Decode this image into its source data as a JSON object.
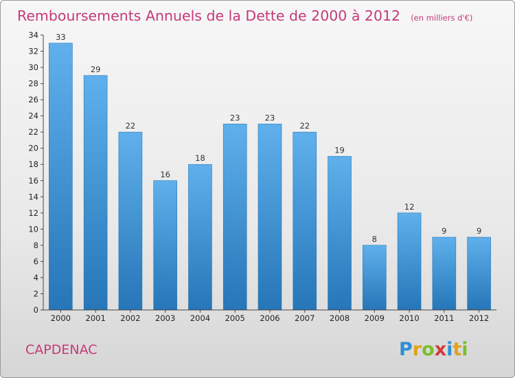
{
  "title": "Remboursements Annuels de la Dette de 2000 à 2012",
  "unit_note": "(en milliers d'€)",
  "city": "CAPDENAC",
  "logo": "Proxiti",
  "colors": {
    "title": "#c43a78",
    "bar_light": "#5fb0ec",
    "bar_dark": "#2676b8"
  },
  "chart_data": {
    "type": "bar",
    "categories": [
      "2000",
      "2001",
      "2002",
      "2003",
      "2004",
      "2005",
      "2006",
      "2007",
      "2008",
      "2009",
      "2010",
      "2011",
      "2012"
    ],
    "values": [
      33,
      29,
      22,
      16,
      18,
      23,
      23,
      22,
      19,
      8,
      12,
      9,
      9
    ],
    "ylim": [
      0,
      34
    ],
    "yticks": [
      0,
      2,
      4,
      6,
      8,
      10,
      12,
      14,
      16,
      18,
      20,
      22,
      24,
      26,
      28,
      30,
      32,
      34
    ],
    "grid": false,
    "legend": "none"
  }
}
